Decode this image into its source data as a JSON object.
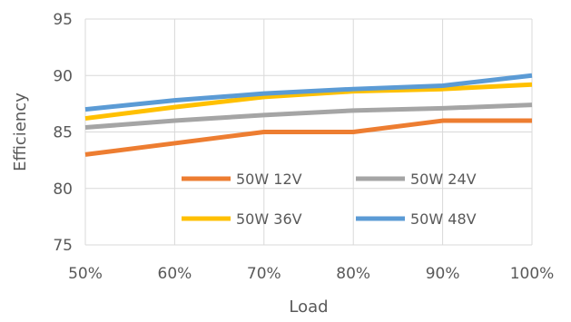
{
  "chart_data": {
    "type": "line",
    "title": "",
    "xlabel": "Load",
    "ylabel": "Efficiency",
    "categories": [
      "50%",
      "60%",
      "70%",
      "80%",
      "90%",
      "100%"
    ],
    "ylim": [
      75,
      95
    ],
    "yticks": [
      "75",
      "80",
      "85",
      "90",
      "95"
    ],
    "grid": true,
    "legend_position": "inside-lower-right",
    "series": [
      {
        "name": "50W 12V",
        "color": "#ED7D31",
        "values": [
          83.0,
          84.0,
          85.0,
          85.0,
          86.0,
          86.0
        ]
      },
      {
        "name": "50W 24V",
        "color": "#A5A5A5",
        "values": [
          85.4,
          86.0,
          86.5,
          86.9,
          87.1,
          87.4
        ]
      },
      {
        "name": "50W 36V",
        "color": "#FFC000",
        "values": [
          86.2,
          87.2,
          88.1,
          88.6,
          88.8,
          89.2
        ]
      },
      {
        "name": "50W 48V",
        "color": "#5B9BD5",
        "values": [
          87.0,
          87.8,
          88.4,
          88.8,
          89.1,
          90.0
        ]
      }
    ]
  }
}
